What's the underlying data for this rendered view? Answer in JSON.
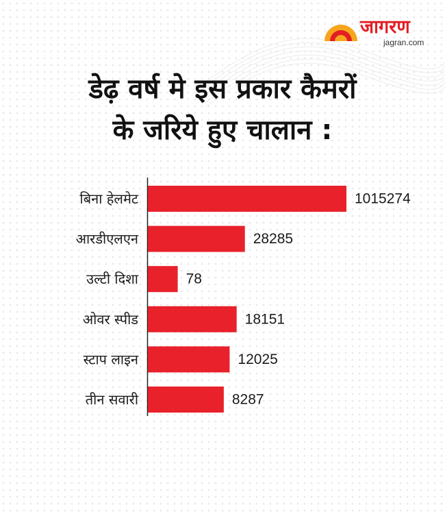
{
  "brand": {
    "name": "जागरण",
    "url": "jagran.com",
    "accent": "#e31e24",
    "sun_color": "#f7a51c"
  },
  "title_lines": [
    "डेढ़ वर्ष मे इस प्रकार कैमरों",
    "के जरिये हुए चालान :"
  ],
  "chart_data": {
    "type": "bar",
    "orientation": "horizontal",
    "title": "डेढ़ वर्ष मे इस प्रकार कैमरों के जरिये हुए चालान :",
    "categories": [
      "बिना हेलमेट",
      "आरडीएलएन",
      "उल्टी दिशा",
      "ओवर स्पीड",
      "स्टाप लाइन",
      "तीन सवारी"
    ],
    "values": [
      1015274,
      28285,
      78,
      18151,
      12025,
      8287
    ],
    "data_labels": [
      "1015274",
      "28285",
      "78",
      "18151",
      "12025",
      "8287"
    ],
    "bar_color": "#e8212a",
    "xlabel": "",
    "ylabel": "",
    "grid": false,
    "legend": "none",
    "axis_break": "values are not drawn to a linear scale"
  }
}
